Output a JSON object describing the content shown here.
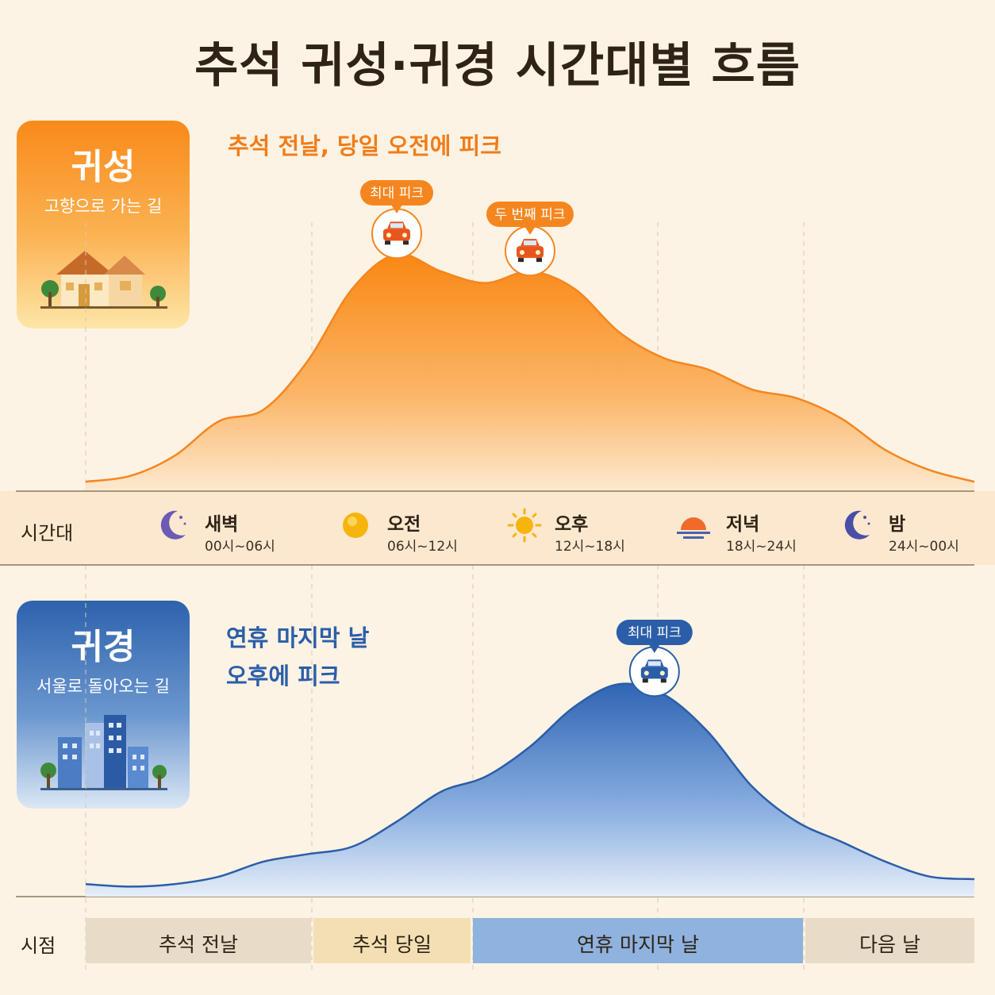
{
  "title": "추석 귀성·귀경 시간대별 흐름",
  "outbound": {
    "title": "귀성",
    "subtitle": "고향으로 가는 길",
    "note": [
      "추석 전날, 당일 오전에 피크"
    ],
    "peak_labels": [
      "최대 피크",
      "두 번째 피크"
    ],
    "color": "#f5861f"
  },
  "return": {
    "title": "귀경",
    "subtitle": "서울로 돌아오는 길",
    "note": [
      "연휴 마지막 날",
      "오후에 피크"
    ],
    "peak_labels": [
      "최대 피크"
    ],
    "color": "#2b5ea8"
  },
  "time_row_label": "시간대",
  "time_periods": [
    {
      "name": "새벽",
      "hours": "00시~06시",
      "icon": "moon-icon"
    },
    {
      "name": "오전",
      "hours": "06시~12시",
      "icon": "sun-icon"
    },
    {
      "name": "오후",
      "hours": "12시~18시",
      "icon": "sun-rays-icon"
    },
    {
      "name": "저녁",
      "hours": "18시~24시",
      "icon": "sunset-icon"
    },
    {
      "name": "밤",
      "hours": "24시~00시",
      "icon": "moon-icon"
    }
  ],
  "day_row_label": "시점",
  "days": [
    {
      "name": "추석 전날",
      "color": "#e8dcc8"
    },
    {
      "name": "추석 당일",
      "color": "#f4dfb4"
    },
    {
      "name": "연휴 마지막 날",
      "color": "#8fb2df"
    },
    {
      "name": "다음 날",
      "color": "#e8dcc8"
    }
  ],
  "chart_data": [
    {
      "type": "area",
      "name": "귀성",
      "x": [
        0,
        1,
        2,
        3,
        4,
        5,
        6,
        7,
        8,
        9,
        10,
        11,
        12,
        13,
        14,
        15,
        16,
        17,
        18,
        19,
        20
      ],
      "values": [
        3,
        5,
        12,
        24,
        28,
        45,
        70,
        82,
        76,
        72,
        76,
        70,
        55,
        46,
        42,
        35,
        32,
        25,
        14,
        7,
        3
      ],
      "peaks": [
        {
          "x": 7,
          "label": "최대 피크"
        },
        {
          "x": 10,
          "label": "두 번째 피크"
        }
      ],
      "ylim": [
        0,
        100
      ]
    },
    {
      "type": "area",
      "name": "귀경",
      "x": [
        0,
        1,
        2,
        3,
        4,
        5,
        6,
        7,
        8,
        9,
        10,
        11,
        12,
        13,
        14,
        15,
        16,
        17,
        18,
        19,
        20
      ],
      "values": [
        5,
        4,
        5,
        8,
        14,
        17,
        20,
        30,
        42,
        48,
        60,
        76,
        85,
        81,
        66,
        44,
        30,
        22,
        14,
        8,
        7
      ],
      "peaks": [
        {
          "x": 12.8,
          "label": "최대 피크"
        }
      ],
      "ylim": [
        0,
        100
      ]
    }
  ]
}
